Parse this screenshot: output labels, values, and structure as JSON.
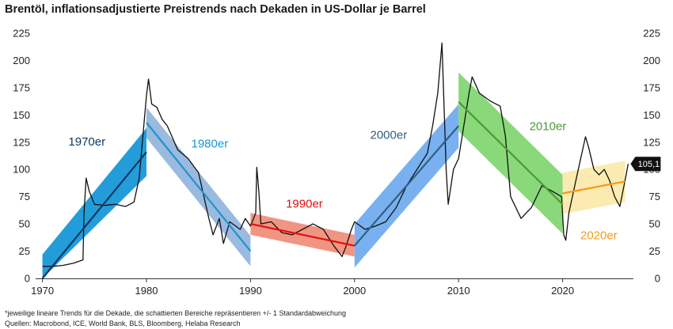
{
  "title": "Brentöl, inflationsadjustierte Preistrends nach Dekaden in US-Dollar je Barrel",
  "footnote": "*jeweilige lineare Trends für die Dekade, die schattierten Bereiche repräsentieren +/- 1 Standardabweichung",
  "sources": "Quellen: Macrobond, ICE, World Bank, BLS, Bloomberg, Helaba Research",
  "chart_data": {
    "type": "line",
    "title": "Brentöl, inflationsadjustierte Preistrends nach Dekaden in US-Dollar je Barrel",
    "xlabel": "",
    "ylabel": "",
    "xlim": [
      1969.5,
      2026.8
    ],
    "ylim": [
      0,
      225
    ],
    "x_ticks": [
      "1970",
      "1980",
      "1990",
      "2000",
      "2010",
      "2020"
    ],
    "y_ticks": [
      "0",
      "25",
      "50",
      "75",
      "100",
      "125",
      "150",
      "175",
      "200",
      "225"
    ],
    "grid": false,
    "last_value_label": "105,1",
    "series": [
      {
        "type": "price",
        "color": "#111111",
        "points": [
          [
            1970.0,
            11
          ],
          [
            1971.0,
            11
          ],
          [
            1972.0,
            12
          ],
          [
            1973.0,
            14
          ],
          [
            1973.9,
            17
          ],
          [
            1974.0,
            60
          ],
          [
            1974.2,
            92
          ],
          [
            1974.5,
            80
          ],
          [
            1975.0,
            68
          ],
          [
            1976.0,
            67
          ],
          [
            1977.0,
            68
          ],
          [
            1978.0,
            66
          ],
          [
            1978.8,
            70
          ],
          [
            1979.3,
            92
          ],
          [
            1979.7,
            135
          ],
          [
            1980.0,
            168
          ],
          [
            1980.2,
            183
          ],
          [
            1980.5,
            160
          ],
          [
            1981.0,
            157
          ],
          [
            1981.5,
            146
          ],
          [
            1982.0,
            140
          ],
          [
            1983.0,
            118
          ],
          [
            1984.0,
            110
          ],
          [
            1985.0,
            97
          ],
          [
            1986.0,
            55
          ],
          [
            1986.4,
            40
          ],
          [
            1987.0,
            55
          ],
          [
            1987.4,
            32
          ],
          [
            1988.0,
            52
          ],
          [
            1989.0,
            45
          ],
          [
            1989.5,
            55
          ],
          [
            1990.0,
            48
          ],
          [
            1990.5,
            60
          ],
          [
            1990.6,
            102
          ],
          [
            1990.8,
            80
          ],
          [
            1991.0,
            50
          ],
          [
            1992.0,
            52
          ],
          [
            1993.0,
            42
          ],
          [
            1994.0,
            40
          ],
          [
            1995.0,
            45
          ],
          [
            1996.0,
            50
          ],
          [
            1997.0,
            45
          ],
          [
            1998.0,
            30
          ],
          [
            1998.8,
            20
          ],
          [
            1999.2,
            30
          ],
          [
            1999.7,
            45
          ],
          [
            2000.0,
            52
          ],
          [
            2001.0,
            45
          ],
          [
            2002.0,
            48
          ],
          [
            2003.0,
            52
          ],
          [
            2004.0,
            65
          ],
          [
            2005.0,
            85
          ],
          [
            2006.0,
            100
          ],
          [
            2007.0,
            115
          ],
          [
            2007.5,
            140
          ],
          [
            2008.0,
            170
          ],
          [
            2008.4,
            216
          ],
          [
            2008.8,
            100
          ],
          [
            2009.0,
            68
          ],
          [
            2009.5,
            100
          ],
          [
            2010.0,
            110
          ],
          [
            2011.0,
            170
          ],
          [
            2011.3,
            185
          ],
          [
            2012.0,
            170
          ],
          [
            2013.0,
            163
          ],
          [
            2014.0,
            158
          ],
          [
            2014.5,
            130
          ],
          [
            2015.0,
            75
          ],
          [
            2016.0,
            55
          ],
          [
            2017.0,
            65
          ],
          [
            2018.0,
            85
          ],
          [
            2019.0,
            80
          ],
          [
            2019.9,
            75
          ],
          [
            2020.1,
            40
          ],
          [
            2020.3,
            35
          ],
          [
            2020.6,
            60
          ],
          [
            2021.0,
            78
          ],
          [
            2021.5,
            100
          ],
          [
            2022.2,
            130
          ],
          [
            2022.5,
            120
          ],
          [
            2023.0,
            100
          ],
          [
            2023.5,
            95
          ],
          [
            2024.0,
            100
          ],
          [
            2024.5,
            90
          ],
          [
            2025.0,
            75
          ],
          [
            2025.5,
            66
          ],
          [
            2026.1,
            95
          ],
          [
            2026.3,
            105.1
          ]
        ]
      },
      {
        "name": "1970er",
        "type": "trend",
        "x": [
          1970.0,
          1980.0
        ],
        "y": [
          0,
          116
        ],
        "band_sd": 22,
        "line_color": "#0d3a63",
        "band_color": "#0b92d6",
        "label_color": "#0d3a63",
        "label_pos": [
          1972.5,
          122
        ]
      },
      {
        "name": "1980er",
        "type": "trend",
        "x": [
          1980.0,
          1990.0
        ],
        "y": [
          143,
          25
        ],
        "band_sd": 14,
        "line_color": "#1e94d0",
        "band_color": "#8fb2dc",
        "label_color": "#1e94d0",
        "label_pos": [
          1984.3,
          120
        ]
      },
      {
        "name": "1990er",
        "type": "trend",
        "x": [
          1990.0,
          2000.0
        ],
        "y": [
          50,
          30
        ],
        "band_sd": 10,
        "line_color": "#e21010",
        "band_color": "#ef8a76",
        "label_color": "#e21010",
        "label_pos": [
          1993.4,
          65
        ]
      },
      {
        "name": "2000er",
        "type": "trend",
        "x": [
          2000.0,
          2010.0
        ],
        "y": [
          30,
          140
        ],
        "band_sd": 20,
        "line_color": "#315f7e",
        "band_color": "#6aa9ee",
        "label_color": "#315f7e",
        "label_pos": [
          2001.5,
          128
        ]
      },
      {
        "name": "2010er",
        "type": "trend",
        "x": [
          2010.0,
          2020.0
        ],
        "y": [
          162,
          68
        ],
        "band_sd": 27,
        "line_color": "#4e9a35",
        "band_color": "#7cd46a",
        "label_color": "#4e9a35",
        "label_pos": [
          2016.8,
          136
        ]
      },
      {
        "name": "2020er",
        "type": "trend",
        "x": [
          2020.0,
          2026.0
        ],
        "y": [
          78,
          89
        ],
        "band_sd": 19,
        "line_color": "#f39b1a",
        "band_color": "#fbe9a7",
        "label_color": "#f39b1a",
        "label_pos": [
          2021.7,
          36
        ]
      }
    ]
  }
}
